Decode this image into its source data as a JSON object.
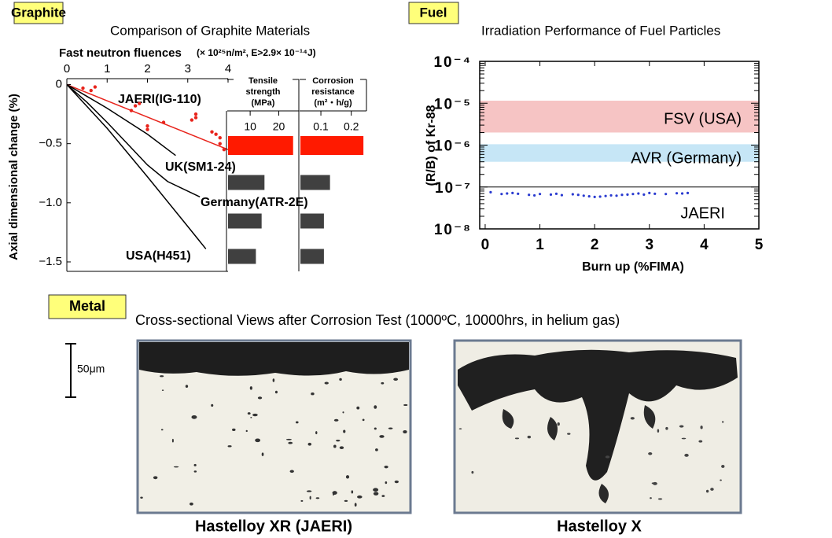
{
  "sections": [
    {
      "label": "Graphite",
      "title": "Comparison of Graphite Materials"
    },
    {
      "label": "Fuel",
      "title": "Irradiation Performance of Fuel Particles"
    },
    {
      "label": "Metal",
      "title": "Cross-sectional Views after Corrosion Test (1000ºC, 10000hrs, in helium gas)"
    }
  ],
  "chart_data": [
    {
      "type": "line",
      "title": "Fast neutron fluences",
      "title_unit": "(× 10²⁵n/m²,  E>2.9× 10⁻¹⁴J)",
      "ylabel": "Axial dimensional change (%)",
      "xlim": [
        0,
        4
      ],
      "xticks": [
        0,
        1,
        2,
        3,
        4
      ],
      "ylim": [
        -1.58,
        0.05
      ],
      "yticks": [
        0,
        {
          "value": -0.5,
          "label": "−0.5"
        },
        {
          "value": -1,
          "label": "−1.0"
        },
        {
          "value": -1.5,
          "label": "−1.5"
        }
      ],
      "series": [
        {
          "name": "JAERI(IG-110)",
          "color": "#e8241c",
          "x": [
            0,
            4
          ],
          "values": [
            0,
            -0.55
          ]
        },
        {
          "name": "UK(SM1-24)",
          "color": "#000000",
          "x": [
            0,
            0.5,
            1,
            1.5,
            2,
            2.7
          ],
          "values": [
            0,
            -0.1,
            -0.2,
            -0.31,
            -0.42,
            -0.6
          ]
        },
        {
          "name": "Germany(ATR-2E)",
          "color": "#000000",
          "x": [
            0,
            0.5,
            1,
            1.5,
            2,
            2.5,
            3.3
          ],
          "values": [
            0,
            -0.15,
            -0.32,
            -0.5,
            -0.68,
            -0.82,
            -0.95
          ]
        },
        {
          "name": "USA(H451)",
          "color": "#000000",
          "x": [
            0,
            1,
            2,
            3,
            3.45
          ],
          "values": [
            0,
            -0.37,
            -0.78,
            -1.2,
            -1.39
          ]
        }
      ],
      "points": {
        "color": "#e8241c",
        "x": [
          0.4,
          0.6,
          0.7,
          1.6,
          1.7,
          1.8,
          2.0,
          2.0,
          2.4,
          3.1,
          3.2,
          3.2,
          3.6,
          3.7,
          3.8,
          3.8,
          3.9
        ],
        "y": [
          -0.03,
          -0.05,
          -0.02,
          -0.22,
          -0.18,
          -0.16,
          -0.35,
          -0.38,
          -0.32,
          -0.3,
          -0.28,
          -0.25,
          -0.4,
          -0.42,
          -0.45,
          -0.5,
          -0.55
        ]
      }
    },
    {
      "type": "barh",
      "title": [
        "Tensile",
        "strength",
        "(MPa)"
      ],
      "xlim": [
        2,
        27
      ],
      "xticks": [
        10,
        20
      ],
      "values": [
        25,
        15,
        14,
        12
      ],
      "colors": [
        "#ff1a00",
        "#404040",
        "#404040",
        "#404040"
      ]
    },
    {
      "type": "barh",
      "title": [
        "Corrosion",
        "resistance",
        "(m²・h/g)"
      ],
      "xlim": [
        0.03,
        0.25
      ],
      "xticks": [
        0.1,
        0.2
      ],
      "values": [
        0.24,
        0.13,
        0.11,
        0.11
      ],
      "colors": [
        "#ff1a00",
        "#404040",
        "#404040",
        "#404040"
      ]
    },
    {
      "type": "scatter",
      "ylabel": "(R/B) of Kr-88",
      "xlabel": "Burn up (%FIMA)",
      "log_y": true,
      "xlim": [
        -0.1,
        5
      ],
      "xticks": [
        0,
        1,
        2,
        3,
        4,
        5
      ],
      "ylim": [
        1e-08,
        0.0001
      ],
      "yticks": [
        {
          "value": 0.0001,
          "label": "10⁻⁴"
        },
        {
          "value": 1e-05,
          "label": "10⁻⁵"
        },
        {
          "value": 1e-06,
          "label": "10⁻⁶"
        },
        {
          "value": 1e-07,
          "label": "10⁻⁷"
        },
        {
          "value": 1e-08,
          "label": "10⁻⁸"
        }
      ],
      "hline": 1e-07,
      "bands": [
        {
          "label": "FSV (USA)",
          "range": [
            2e-06,
            1.15e-05
          ],
          "color": "#f6c4c4"
        },
        {
          "label": "AVR (Germany)",
          "range": [
            4e-07,
            1.05e-06
          ],
          "color": "#c6e6f6"
        }
      ],
      "series": [
        {
          "name": "JAERI",
          "color": "#2a3bd0",
          "label_color": "#ff1a00",
          "x": [
            0.1,
            0.3,
            0.4,
            0.5,
            0.6,
            0.8,
            0.9,
            1.0,
            1.2,
            1.3,
            1.4,
            1.6,
            1.7,
            1.8,
            1.9,
            2.0,
            2.1,
            2.2,
            2.3,
            2.4,
            2.5,
            2.6,
            2.7,
            2.8,
            2.9,
            3.0,
            3.1,
            3.3,
            3.5,
            3.6,
            3.7
          ],
          "values": [
            7.5e-08,
            6.8e-08,
            7e-08,
            7.2e-08,
            6.9e-08,
            6.5e-08,
            6.3e-08,
            6.8e-08,
            6.6e-08,
            6.9e-08,
            6.4e-08,
            6.7e-08,
            6.5e-08,
            6.2e-08,
            6e-08,
            5.8e-08,
            5.9e-08,
            6.1e-08,
            6.3e-08,
            6.2e-08,
            6.5e-08,
            6.6e-08,
            6.8e-08,
            7e-08,
            6.6e-08,
            7.2e-08,
            6.9e-08,
            6.8e-08,
            7.1e-08,
            7e-08,
            7.2e-08
          ]
        }
      ]
    }
  ],
  "metal": {
    "scale_label": "50μm",
    "images": [
      {
        "caption": "Hastelloy XR (JAERI)",
        "color": "#ff1a00"
      },
      {
        "caption": "Hastelloy X",
        "color": "#000000"
      }
    ]
  }
}
